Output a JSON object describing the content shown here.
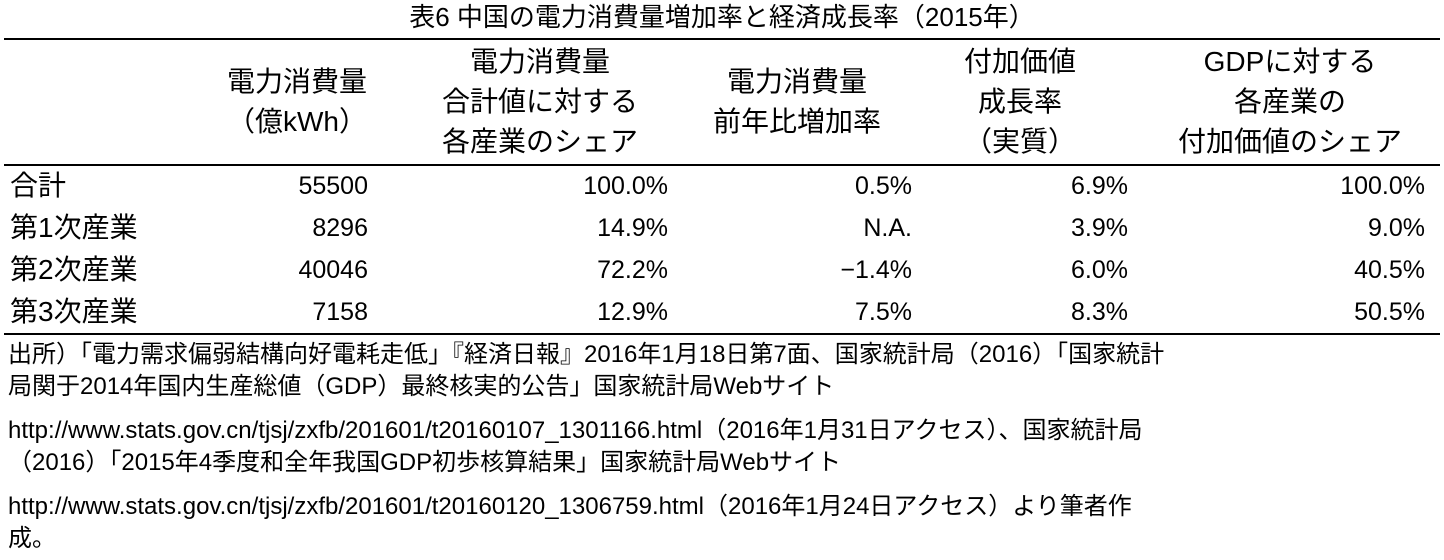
{
  "title": "表6 中国の電力消費量増加率と経済成長率（2015年）",
  "table": {
    "header": [
      [
        "電力消費量",
        "（億kWh）"
      ],
      [
        "電力消費量",
        "合計値に対する",
        "各産業のシェア"
      ],
      [
        "電力消費量",
        "前年比増加率"
      ],
      [
        "付加価値",
        "成長率",
        "（実質）"
      ],
      [
        "GDPに対する",
        "各産業の",
        "付加価値のシェア"
      ]
    ],
    "rows": [
      [
        "合計",
        "55500",
        "100.0%",
        "0.5%",
        "6.9%",
        "100.0%"
      ],
      [
        "第1次産業",
        "8296",
        "14.9%",
        "N.A.",
        "3.9%",
        "9.0%"
      ],
      [
        "第2次産業",
        "40046",
        "72.2%",
        "−1.4%",
        "6.0%",
        "40.5%"
      ],
      [
        "第3次産業",
        "7158",
        "12.9%",
        "7.5%",
        "8.3%",
        "50.5%"
      ]
    ]
  },
  "source": [
    "出所）「電力需求偏弱結構向好電耗走低」『経済日報』2016年1月18日第7面、国家統計局（2016）「国家統計",
    "局関于2014年国内生産総値（GDP）最終核実的公告」国家統計局Webサイト",
    "http://www.stats.gov.cn/tjsj/zxfb/201601/t20160107_1301166.html（2016年1月31日アクセス）、国家統計局",
    "（2016）「2015年4季度和全年我国GDP初歩核算結果」国家統計局Webサイト",
    "http://www.stats.gov.cn/tjsj/zxfb/201601/t20160120_1306759.html（2016年1月24日アクセス）より筆者作",
    "成。"
  ]
}
